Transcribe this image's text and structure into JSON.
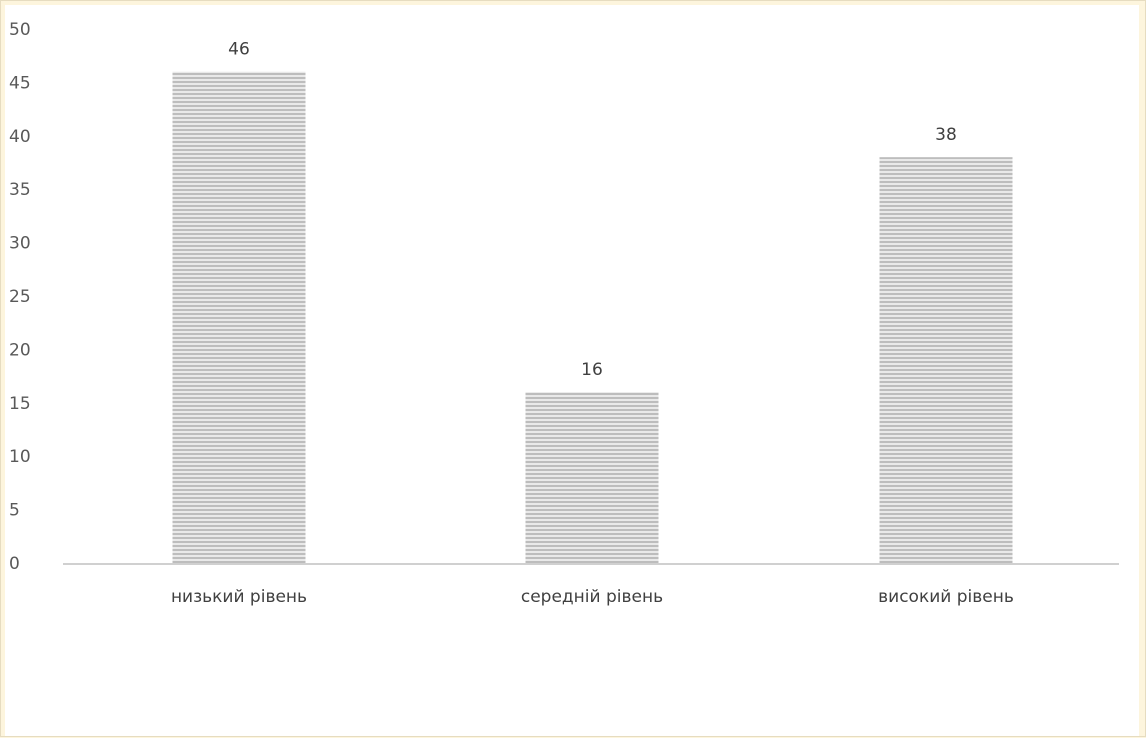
{
  "chart_data": {
    "type": "bar",
    "title": "",
    "xlabel": "",
    "ylabel": "",
    "categories": [
      "низький рівень",
      "середній рівень",
      "високий рівень"
    ],
    "values": [
      46,
      16,
      38
    ],
    "data_labels": [
      "46",
      "16",
      "38"
    ],
    "ylim": [
      0,
      50
    ],
    "y_ticks": [
      0,
      5,
      10,
      15,
      20,
      25,
      30,
      35,
      40,
      45,
      50
    ],
    "grid": false,
    "legend": "none",
    "colors": {
      "bar_fill": "#bdbdbd",
      "bar_stripe": "#e9e9e9",
      "axis": "#d0d0d0",
      "background": "#fdf5dd"
    }
  }
}
